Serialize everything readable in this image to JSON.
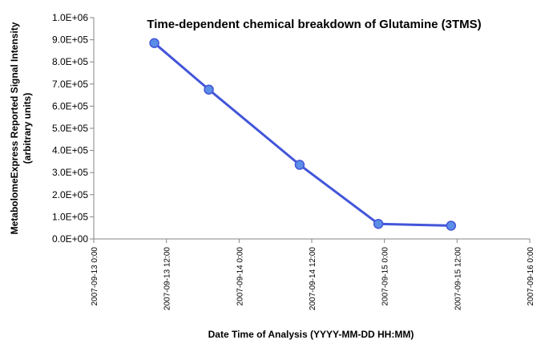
{
  "chart_data": {
    "type": "scatter",
    "title": "Time-dependent chemical breakdown of Glutamine (3TMS)",
    "xlabel": "Date Time of Analysis (YYYY-MM-DD HH:MM)",
    "ylabel_line1": "MetabolomeExpress Reported Signal Intensity",
    "ylabel_line2": "(arbitrary units)",
    "xlim": [
      "2007-09-13 00:00",
      "2007-09-16 00:00"
    ],
    "ylim": [
      0,
      1000000
    ],
    "x_ticks": [
      "2007-09-13 0:00",
      "2007-09-13 12:00",
      "2007-09-14 0:00",
      "2007-09-14 12:00",
      "2007-09-15 0:00",
      "2007-09-15 12:00",
      "2007-09-16 0:00"
    ],
    "y_ticks": [
      "0.0E+00",
      "1.0E+05",
      "2.0E+05",
      "3.0E+05",
      "4.0E+05",
      "5.0E+05",
      "6.0E+05",
      "7.0E+05",
      "8.0E+05",
      "9.0E+05",
      "1.0E+06"
    ],
    "grid": false,
    "legend": "none",
    "series": [
      {
        "x": [
          "2007-09-13 10:00",
          "2007-09-13 19:00",
          "2007-09-14 10:00",
          "2007-09-14 23:00",
          "2007-09-15 11:00"
        ],
        "y": [
          885000,
          675000,
          335000,
          68000,
          60000
        ],
        "color": "#4355d9",
        "marker_fill": "#5b8ee6"
      }
    ]
  }
}
